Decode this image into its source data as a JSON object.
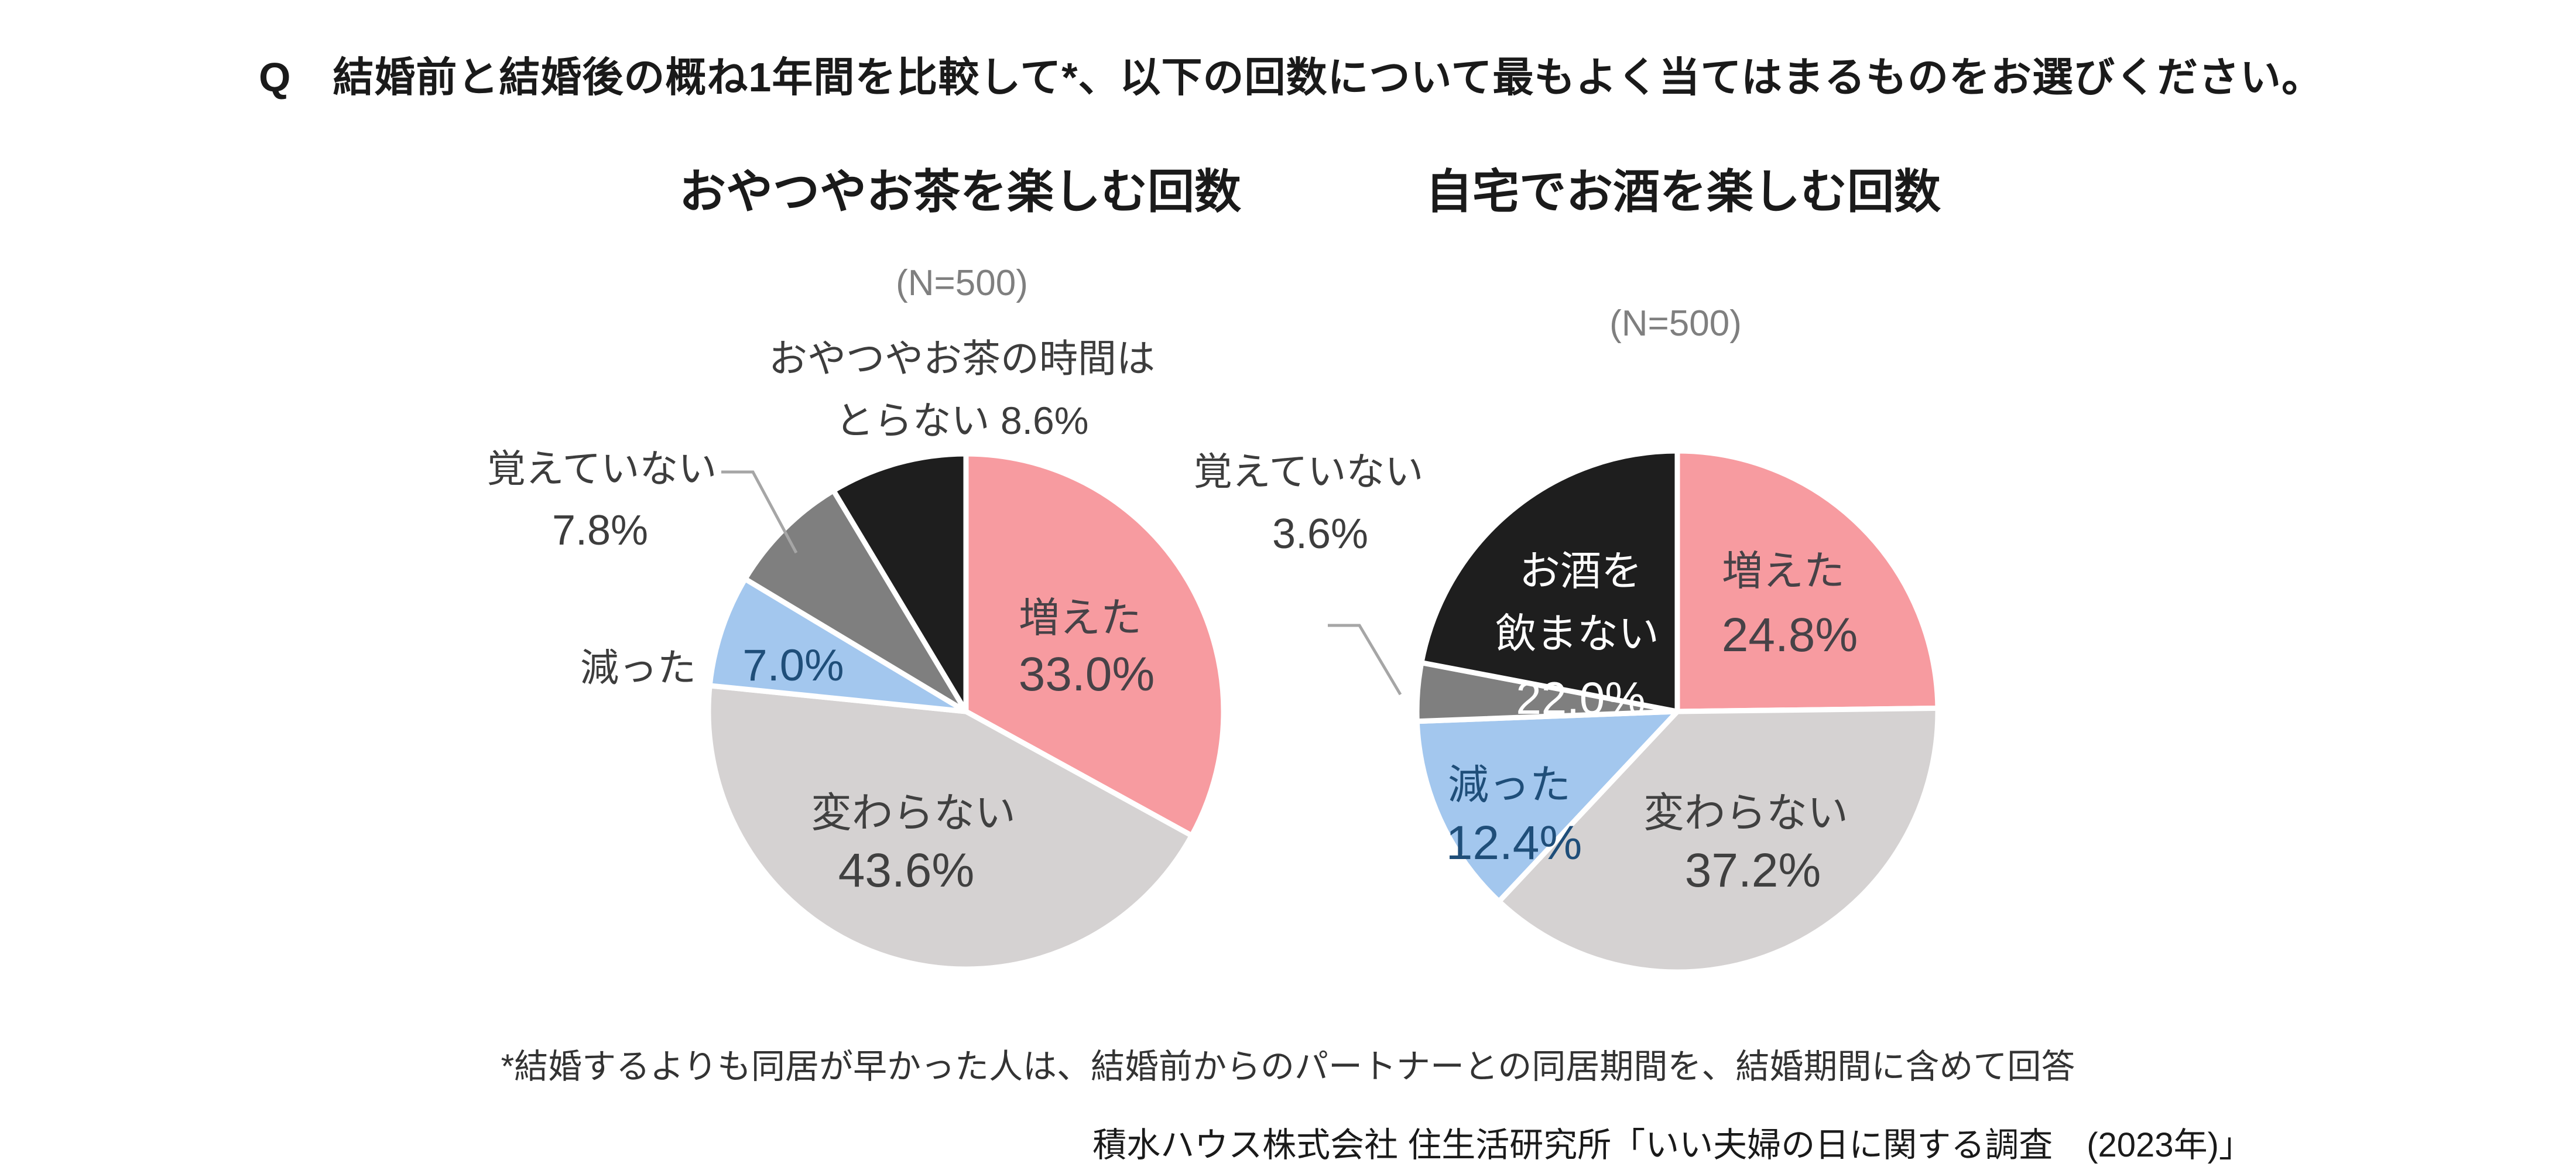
{
  "title": "Q　結婚前と結婚後の概ね1年間を比較して*、以下の回数について最もよく当てはまるものをお選びください。",
  "footnote": "*結婚するよりも同居が早かった人は、結婚前からのパートナーとの同居期間を、結婚期間に含めて回答",
  "source": "積水ハウス株式会社 住生活研究所「いい夫婦の日に関する調査　(2023年)」",
  "colors": {
    "background": "#FFFFFF",
    "title_text": "#1A1A1A",
    "n_text": "#7F7F7F",
    "outside_label_text": "#3D3D3D",
    "leader_line": "#A6A6A6",
    "slice_border": "#FFFFFF"
  },
  "chart_data": [
    {
      "type": "pie",
      "title": "おやつやお茶を楽しむ回数",
      "n_label": "(N=500)",
      "start_angle_deg": 0,
      "direction": "clockwise",
      "legend_position": "none",
      "slices": [
        {
          "label": "増えた",
          "value": 33.0,
          "value_label": "33.0%",
          "color": "#F79BA0",
          "label_color": "#474247",
          "value_color": "#474247",
          "label_placement": "inside"
        },
        {
          "label": "変わらない",
          "value": 43.6,
          "value_label": "43.6%",
          "color": "#D5D2D2",
          "label_color": "#404040",
          "value_color": "#404040",
          "label_placement": "inside"
        },
        {
          "label": "減った",
          "value": 7.0,
          "value_label": "7.0%",
          "color": "#A3C7EE",
          "label_color": "#3D3D3D",
          "value_color": "#1F4E79",
          "label_placement": "label-outside-value-inside"
        },
        {
          "label": "覚えていない",
          "value": 7.8,
          "value_label": "7.8%",
          "color": "#7F7F7F",
          "label_color": "#3D3D3D",
          "value_color": "#3D3D3D",
          "label_placement": "outside-with-leader"
        },
        {
          "label": "おやつやお茶の時間はとらない",
          "value": 8.6,
          "value_label": "8.6%",
          "color": "#1E1E1E",
          "label_color": "#3D3D3D",
          "value_color": "#3D3D3D",
          "label_placement": "outside",
          "label_lines": [
            "おやつやお茶の時間は",
            "とらない 8.6%"
          ]
        }
      ]
    },
    {
      "type": "pie",
      "title": "自宅でお酒を楽しむ回数",
      "n_label": "(N=500)",
      "start_angle_deg": 0,
      "direction": "clockwise",
      "legend_position": "none",
      "slices": [
        {
          "label": "増えた",
          "value": 24.8,
          "value_label": "24.8%",
          "color": "#F79BA0",
          "label_color": "#474247",
          "value_color": "#474247",
          "label_placement": "inside"
        },
        {
          "label": "変わらない",
          "value": 37.2,
          "value_label": "37.2%",
          "color": "#D5D2D2",
          "label_color": "#404040",
          "value_color": "#404040",
          "label_placement": "inside"
        },
        {
          "label": "減った",
          "value": 12.4,
          "value_label": "12.4%",
          "color": "#A3C7EE",
          "label_color": "#1F4E79",
          "value_color": "#1F4E79",
          "label_placement": "inside"
        },
        {
          "label": "覚えていない",
          "value": 3.6,
          "value_label": "3.6%",
          "color": "#7F7F7F",
          "label_color": "#3D3D3D",
          "value_color": "#3D3D3D",
          "label_placement": "outside-with-leader"
        },
        {
          "label": "お酒を飲まない",
          "value": 22.0,
          "value_label": "22.0%",
          "color": "#1E1E1E",
          "label_color": "#FFFFFF",
          "value_color": "#FFFFFF",
          "label_placement": "inside",
          "label_lines": [
            "お酒を",
            "飲まない",
            "22.0%"
          ]
        }
      ]
    }
  ]
}
